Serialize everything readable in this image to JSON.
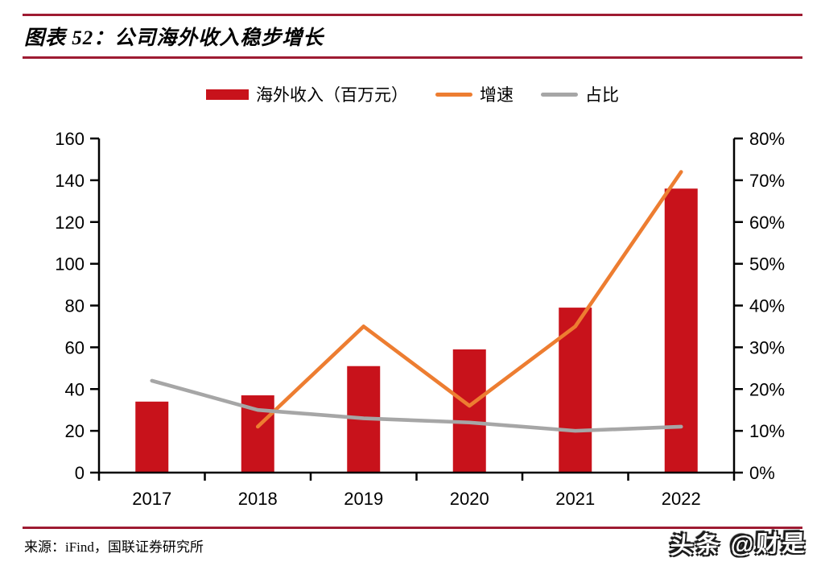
{
  "page": {
    "title": "图表 52：公司海外收入稳步增长",
    "source": "来源：iFind，国联证券研究所",
    "watermark": "头条 @财是"
  },
  "colors": {
    "rule": "#9E1B32",
    "axis": "#000000",
    "bar": "#C8121B",
    "growth_line": "#ED7D31",
    "share_line": "#A6A6A6"
  },
  "chart_data": {
    "type": "bar",
    "title": "图表 52：公司海外收入稳步增长",
    "categories": [
      "2017",
      "2018",
      "2019",
      "2020",
      "2021",
      "2022"
    ],
    "series": [
      {
        "name": "海外收入（百万元）",
        "type": "bar",
        "axis": "left",
        "color": "#C8121B",
        "values": [
          34,
          37,
          51,
          59,
          79,
          136
        ]
      },
      {
        "name": "增速",
        "type": "line",
        "axis": "right",
        "color": "#ED7D31",
        "unit": "%",
        "values": [
          null,
          11,
          35,
          16,
          35,
          72
        ]
      },
      {
        "name": "占比",
        "type": "line",
        "axis": "right",
        "color": "#A6A6A6",
        "unit": "%",
        "values": [
          22,
          15,
          13,
          12,
          10,
          11
        ]
      }
    ],
    "left_axis": {
      "min": 0,
      "max": 160,
      "step": 20,
      "ticks": [
        "0",
        "20",
        "40",
        "60",
        "80",
        "100",
        "120",
        "140",
        "160"
      ]
    },
    "right_axis": {
      "min": 0,
      "max": 80,
      "step": 10,
      "ticks": [
        "0%",
        "10%",
        "20%",
        "30%",
        "40%",
        "50%",
        "60%",
        "70%",
        "80%"
      ]
    },
    "grid": false,
    "legend_position": "top-center"
  }
}
